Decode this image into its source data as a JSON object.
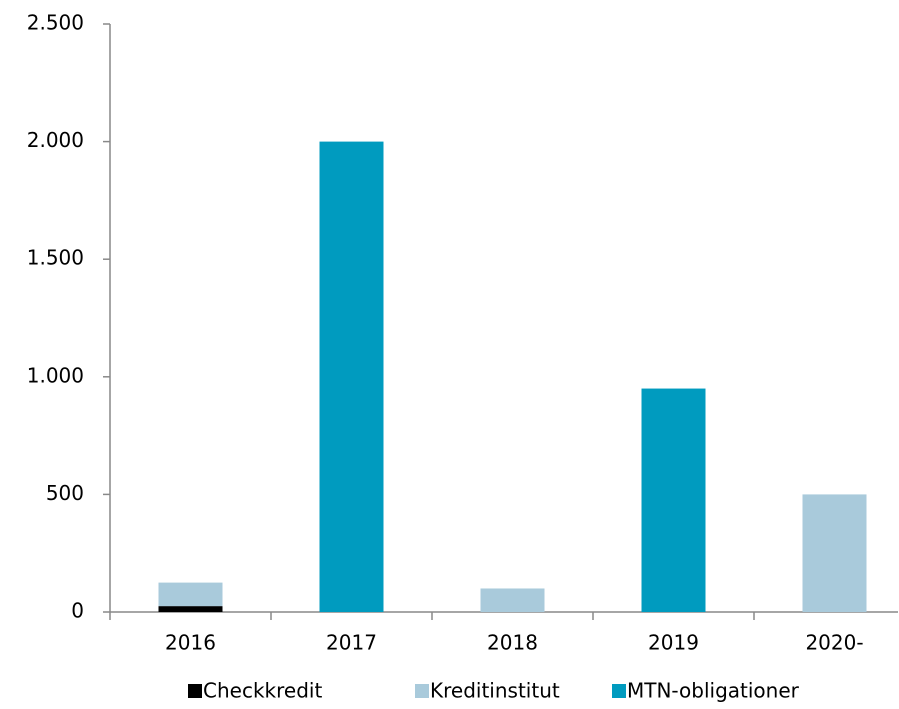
{
  "chart_data": {
    "type": "stacked_bar",
    "categories": [
      "2016",
      "2017",
      "2018",
      "2019",
      "2020-"
    ],
    "series": [
      {
        "name": "Checkkredit",
        "color": "#000000",
        "values": [
          25,
          0,
          0,
          0,
          0
        ]
      },
      {
        "name": "Kreditinstitut",
        "color": "#a9cadb",
        "values": [
          100,
          0,
          100,
          0,
          500
        ]
      },
      {
        "name": "MTN-obligationer",
        "color": "#009bbf",
        "values": [
          0,
          2000,
          0,
          950,
          0
        ]
      }
    ],
    "ylim": [
      0,
      2500
    ],
    "yticks": [
      0,
      500,
      {
        "value": 1000,
        "label": "1.000"
      },
      {
        "value": 1500,
        "label": "1.500"
      },
      {
        "value": 2000,
        "label": "2.000"
      },
      {
        "value": 2500,
        "label": "2.500"
      }
    ],
    "grid": false,
    "legend": "bottom"
  }
}
